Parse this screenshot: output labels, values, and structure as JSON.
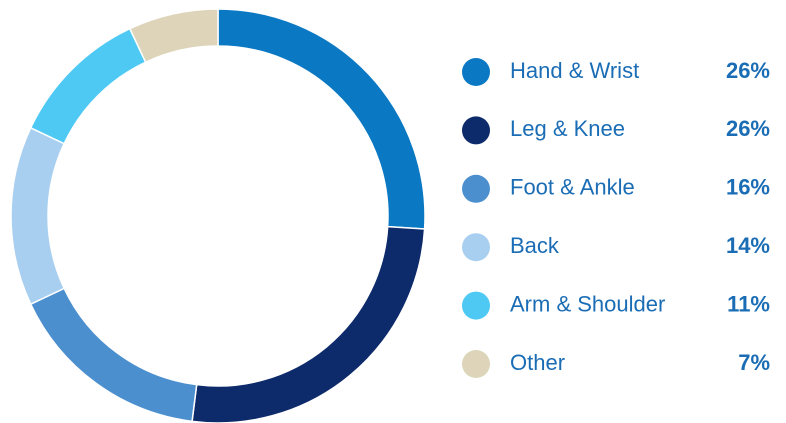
{
  "chart_data": {
    "type": "donut",
    "categories": [
      "Hand & Wrist",
      "Leg & Knee",
      "Foot & Ankle",
      "Back",
      "Arm & Shoulder",
      "Other"
    ],
    "values": [
      26,
      26,
      16,
      14,
      11,
      7
    ],
    "value_labels": [
      "26%",
      "26%",
      "16%",
      "14%",
      "11%",
      "7%"
    ],
    "colors": [
      "#0a78c2",
      "#0d2a6b",
      "#4b8fcf",
      "#a9cff0",
      "#4ec9f4",
      "#ddd4b9"
    ],
    "legend": "right"
  }
}
